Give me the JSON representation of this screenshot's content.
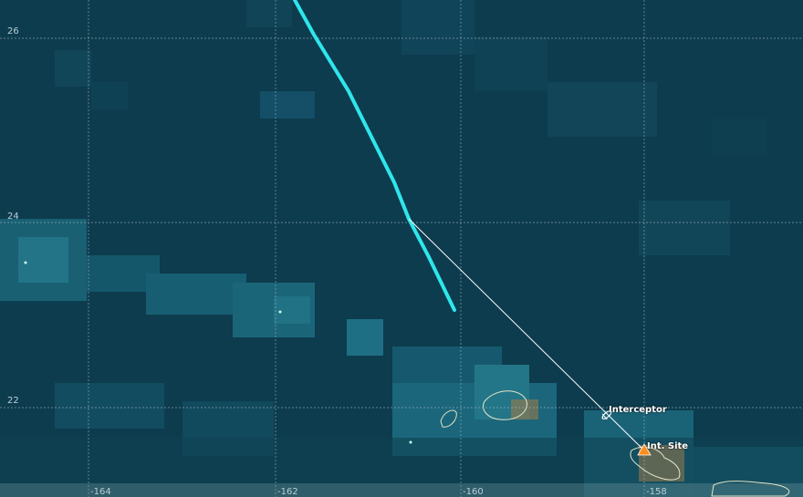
{
  "map": {
    "latitude_labels": [
      "26",
      "24",
      "22"
    ],
    "longitude_labels": [
      "-164",
      "-162",
      "-160",
      "-158"
    ],
    "units": {
      "interceptor": "Interceptor",
      "site": "Int. Site"
    },
    "colors": {
      "ocean": "#0d3d4f",
      "grid": "#9fb8c0",
      "track": "#2ee6ec",
      "intercept_line": "#ffffff",
      "land_outline": "#e6e6c8",
      "land_fill": "#9b7a4a",
      "site_marker": "#ff8c1a"
    },
    "icons": {
      "interceptor": "aircraft-icon",
      "site": "warning-triangle-icon"
    }
  }
}
